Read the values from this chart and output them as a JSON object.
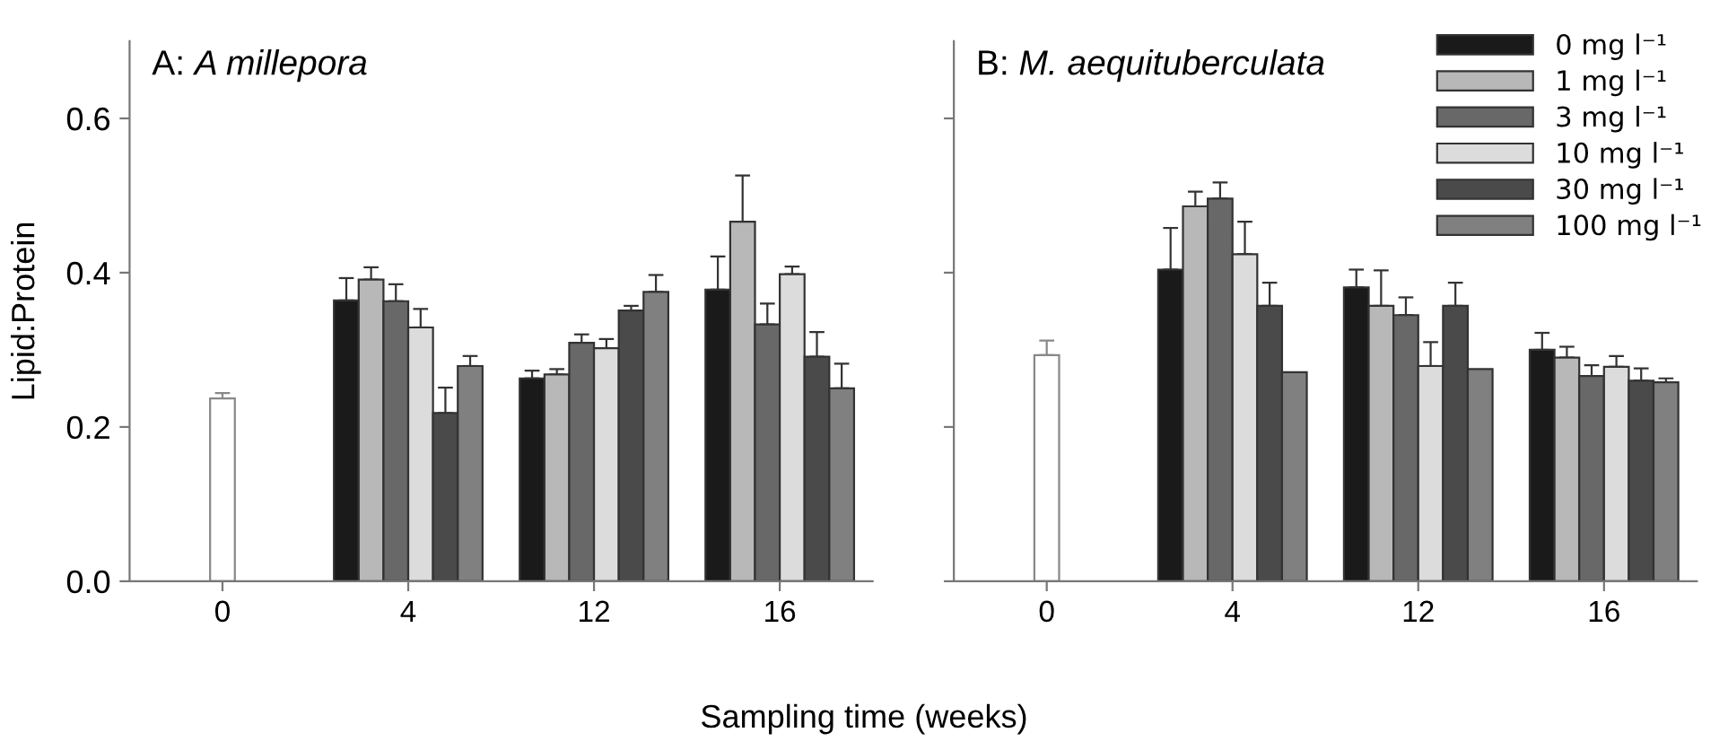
{
  "chart_data": [
    {
      "type": "bar",
      "title": "A: A millepora",
      "xlabel": "Sampling time (weeks)",
      "ylabel": "Lipid:Protein",
      "categories": [
        "0",
        "4",
        "12",
        "16"
      ],
      "ylim": [
        0,
        0.7
      ],
      "yticks": [
        {
          "value": 0,
          "label": "0.0"
        },
        {
          "value": 0.2,
          "label": "0.2"
        },
        {
          "value": 0.4,
          "label": "0.4"
        },
        {
          "value": 0.6,
          "label": "0.6"
        }
      ],
      "grid": false,
      "series": [
        {
          "color": "#ffffff",
          "values": [
            0.237,
            null,
            null,
            null
          ],
          "errors": [
            [
              0.237,
              0.244
            ],
            null,
            null,
            null
          ]
        },
        {
          "color": "#1a1a1a",
          "values": [
            null,
            0.364,
            0.263,
            0.378
          ],
          "errors": [
            null,
            [
              0.364,
              0.393
            ],
            [
              0.263,
              0.273
            ],
            [
              0.378,
              0.421
            ]
          ]
        },
        {
          "color": "#b8b8b8",
          "values": [
            null,
            0.391,
            0.268,
            0.466
          ],
          "errors": [
            null,
            [
              0.391,
              0.407
            ],
            [
              0.268,
              0.275
            ],
            [
              0.466,
              0.526
            ]
          ]
        },
        {
          "color": "#686868",
          "values": [
            null,
            0.363,
            0.309,
            0.333
          ],
          "errors": [
            null,
            [
              0.363,
              0.385
            ],
            [
              0.309,
              0.32
            ],
            [
              0.333,
              0.36
            ]
          ]
        },
        {
          "color": "#dcdcdc",
          "values": [
            null,
            0.329,
            0.302,
            0.398
          ],
          "errors": [
            null,
            [
              0.329,
              0.353
            ],
            [
              0.302,
              0.314
            ],
            [
              0.398,
              0.408
            ]
          ]
        },
        {
          "color": "#4a4a4a",
          "values": [
            null,
            0.218,
            0.351,
            0.291
          ],
          "errors": [
            null,
            [
              0.218,
              0.251
            ],
            [
              0.351,
              0.357
            ],
            [
              0.291,
              0.323
            ]
          ]
        },
        {
          "color": "#808080",
          "values": [
            null,
            0.279,
            0.375,
            0.25
          ],
          "errors": [
            null,
            [
              0.279,
              0.292
            ],
            [
              0.375,
              0.397
            ],
            [
              0.25,
              0.282
            ]
          ]
        }
      ]
    },
    {
      "type": "bar",
      "title": "B: M. aequituberculata",
      "categories": [
        "0",
        "4",
        "12",
        "16"
      ],
      "ylim": [
        0,
        0.7
      ],
      "yticks": [
        {
          "value": 0.0,
          "label": null
        },
        {
          "value": 0.2,
          "label": null
        },
        {
          "value": 0.4,
          "label": null
        },
        {
          "value": 0.6,
          "label": null
        }
      ],
      "tick_labels": "x",
      "legend": "top right",
      "grid": false,
      "series": [
        {
          "color": "#ffffff",
          "values": [
            0.293,
            null,
            null,
            null
          ],
          "errors": [
            [
              0.293,
              0.312
            ],
            null,
            null,
            null
          ]
        },
        {
          "name": "0 mg l⁻¹",
          "color": "#1a1a1a",
          "values": [
            null,
            0.404,
            0.381,
            0.3
          ],
          "errors": [
            null,
            [
              0.404,
              0.458
            ],
            [
              0.381,
              0.404
            ],
            [
              0.3,
              0.322
            ]
          ]
        },
        {
          "name": "1 mg l⁻¹",
          "color": "#b8b8b8",
          "values": [
            null,
            0.486,
            0.357,
            0.29
          ],
          "errors": [
            null,
            [
              0.486,
              0.505
            ],
            [
              0.357,
              0.403
            ],
            [
              0.29,
              0.304
            ]
          ]
        },
        {
          "name": "3 mg l⁻¹",
          "color": "#686868",
          "values": [
            null,
            0.496,
            0.345,
            0.266
          ],
          "errors": [
            null,
            [
              0.496,
              0.517
            ],
            [
              0.345,
              0.368
            ],
            [
              0.266,
              0.28
            ]
          ]
        },
        {
          "name": "10 mg l⁻¹",
          "color": "#dcdcdc",
          "values": [
            null,
            0.424,
            0.279,
            0.278
          ],
          "errors": [
            null,
            [
              0.424,
              0.466
            ],
            [
              0.279,
              0.31
            ],
            [
              0.278,
              0.292
            ]
          ]
        },
        {
          "name": "30 mg l⁻¹",
          "color": "#4a4a4a",
          "values": [
            null,
            0.357,
            0.357,
            0.26
          ],
          "errors": [
            null,
            [
              0.357,
              0.387
            ],
            [
              0.357,
              0.387
            ],
            [
              0.26,
              0.276
            ]
          ]
        },
        {
          "name": "100 mg l⁻¹",
          "color": "#808080",
          "values": [
            null,
            0.271,
            0.275,
            0.258
          ],
          "errors": [
            null,
            null,
            null,
            [
              0.258,
              0.263
            ]
          ]
        }
      ]
    }
  ]
}
